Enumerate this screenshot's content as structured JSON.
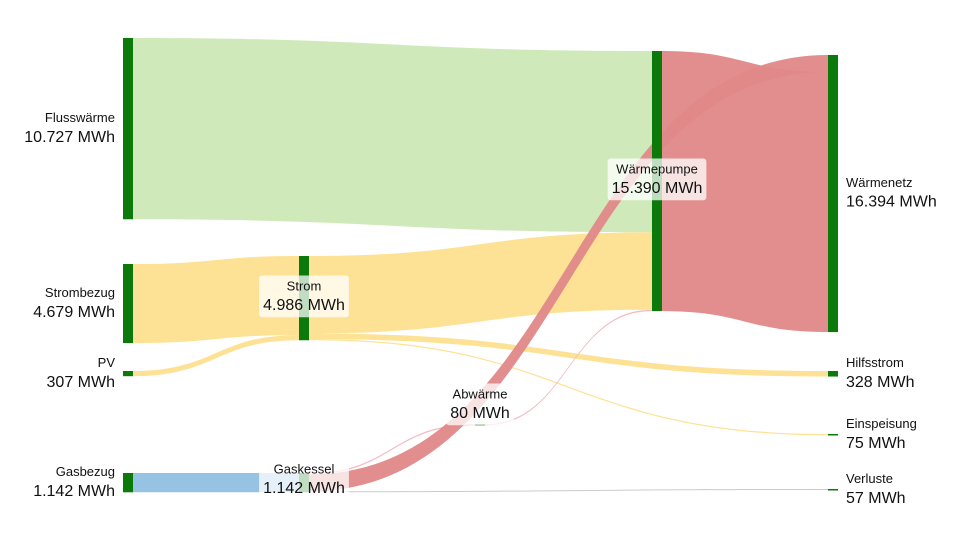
{
  "chart_data": {
    "type": "sankey",
    "nodes": [
      {
        "name": "Flusswärme",
        "value": 10727,
        "value_label": "10.727 MWh"
      },
      {
        "name": "Strombezug",
        "value": 4679,
        "value_label": "4.679 MWh"
      },
      {
        "name": "PV",
        "value": 307,
        "value_label": "307 MWh"
      },
      {
        "name": "Gasbezug",
        "value": 1142,
        "value_label": "1.142 MWh"
      },
      {
        "name": "Strom",
        "value": 4986,
        "value_label": "4.986 MWh"
      },
      {
        "name": "Gaskessel",
        "value": 1142,
        "value_label": "1.142 MWh"
      },
      {
        "name": "Abwärme",
        "value": 80,
        "value_label": "80 MWh"
      },
      {
        "name": "Wärmepumpe",
        "value": 15390,
        "value_label": "15.390 MWh"
      },
      {
        "name": "Wärmenetz",
        "value": 16394,
        "value_label": "16.394 MWh"
      },
      {
        "name": "Hilfsstrom",
        "value": 328,
        "value_label": "328 MWh"
      },
      {
        "name": "Einspeisung",
        "value": 75,
        "value_label": "75 MWh"
      },
      {
        "name": "Verluste",
        "value": 57,
        "value_label": "57 MWh"
      }
    ],
    "node_color": "#0b7a0b",
    "links": [
      {
        "source": 0,
        "target": 7,
        "value": 10727,
        "color": "#cde8b6"
      },
      {
        "source": 1,
        "target": 4,
        "value": 4679,
        "color": "#fde08f"
      },
      {
        "source": 2,
        "target": 4,
        "value": 307,
        "color": "#fde08f"
      },
      {
        "source": 3,
        "target": 5,
        "value": 1142,
        "color": "#90bfe2"
      },
      {
        "source": 4,
        "target": 7,
        "value": 4583,
        "color": "#fde08f"
      },
      {
        "source": 4,
        "target": 9,
        "value": 328,
        "color": "#fde08f"
      },
      {
        "source": 4,
        "target": 10,
        "value": 75,
        "color": "#fde08f"
      },
      {
        "source": 5,
        "target": 6,
        "value": 80,
        "color": "#f2b8c0"
      },
      {
        "source": 5,
        "target": 8,
        "value": 1004,
        "color": "#e08888"
      },
      {
        "source": 5,
        "target": 11,
        "value": 57,
        "color": "#c8c8c8"
      },
      {
        "source": 6,
        "target": 7,
        "value": 80,
        "color": "#f2b8c0"
      },
      {
        "source": 7,
        "target": 8,
        "value": 15390,
        "color": "#e08888"
      }
    ]
  }
}
